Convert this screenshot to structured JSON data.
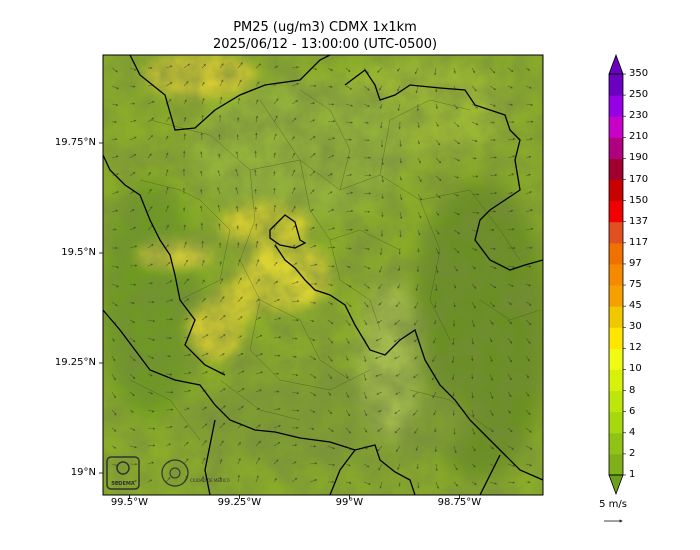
{
  "title": {
    "line1": "PM25 (ug/m3) CDMX 1x1km",
    "line2": "2025/06/12 - 13:00:00 (UTC-0500)"
  },
  "axes": {
    "y_ticks": [
      {
        "label": "19.75°N",
        "value": 19.75
      },
      {
        "label": "19.5°N",
        "value": 19.5
      },
      {
        "label": "19.25°N",
        "value": 19.25
      },
      {
        "label": "19°N",
        "value": 19.0
      }
    ],
    "x_ticks": [
      {
        "label": "99.5°W",
        "value": -99.5
      },
      {
        "label": "99.25°W",
        "value": -99.25
      },
      {
        "label": "99°W",
        "value": -99.0
      },
      {
        "label": "98.75°W",
        "value": -98.75
      }
    ],
    "lat_range": [
      18.95,
      19.95
    ],
    "lon_range": [
      -99.56,
      -98.56
    ]
  },
  "colorbar": {
    "labels": [
      "1",
      "2",
      "4",
      "6",
      "8",
      "10",
      "12",
      "30",
      "45",
      "75",
      "97",
      "117",
      "137",
      "150",
      "170",
      "190",
      "210",
      "230",
      "250",
      "350"
    ],
    "colors": [
      "#6e9e1e",
      "#7fb01a",
      "#8fc416",
      "#a6d80f",
      "#bde60a",
      "#d6f20a",
      "#f0fa14",
      "#ffe600",
      "#f0c800",
      "#f5a000",
      "#f58a00",
      "#f07000",
      "#e05020",
      "#f00000",
      "#c80000",
      "#a00030",
      "#b00080",
      "#c800c8",
      "#9600e6",
      "#6a00c0"
    ],
    "wind_scale_label": "5 m/s"
  },
  "logos": {
    "left": "SEDEMA",
    "right": "CIUDAD DE MÉXICO"
  }
}
